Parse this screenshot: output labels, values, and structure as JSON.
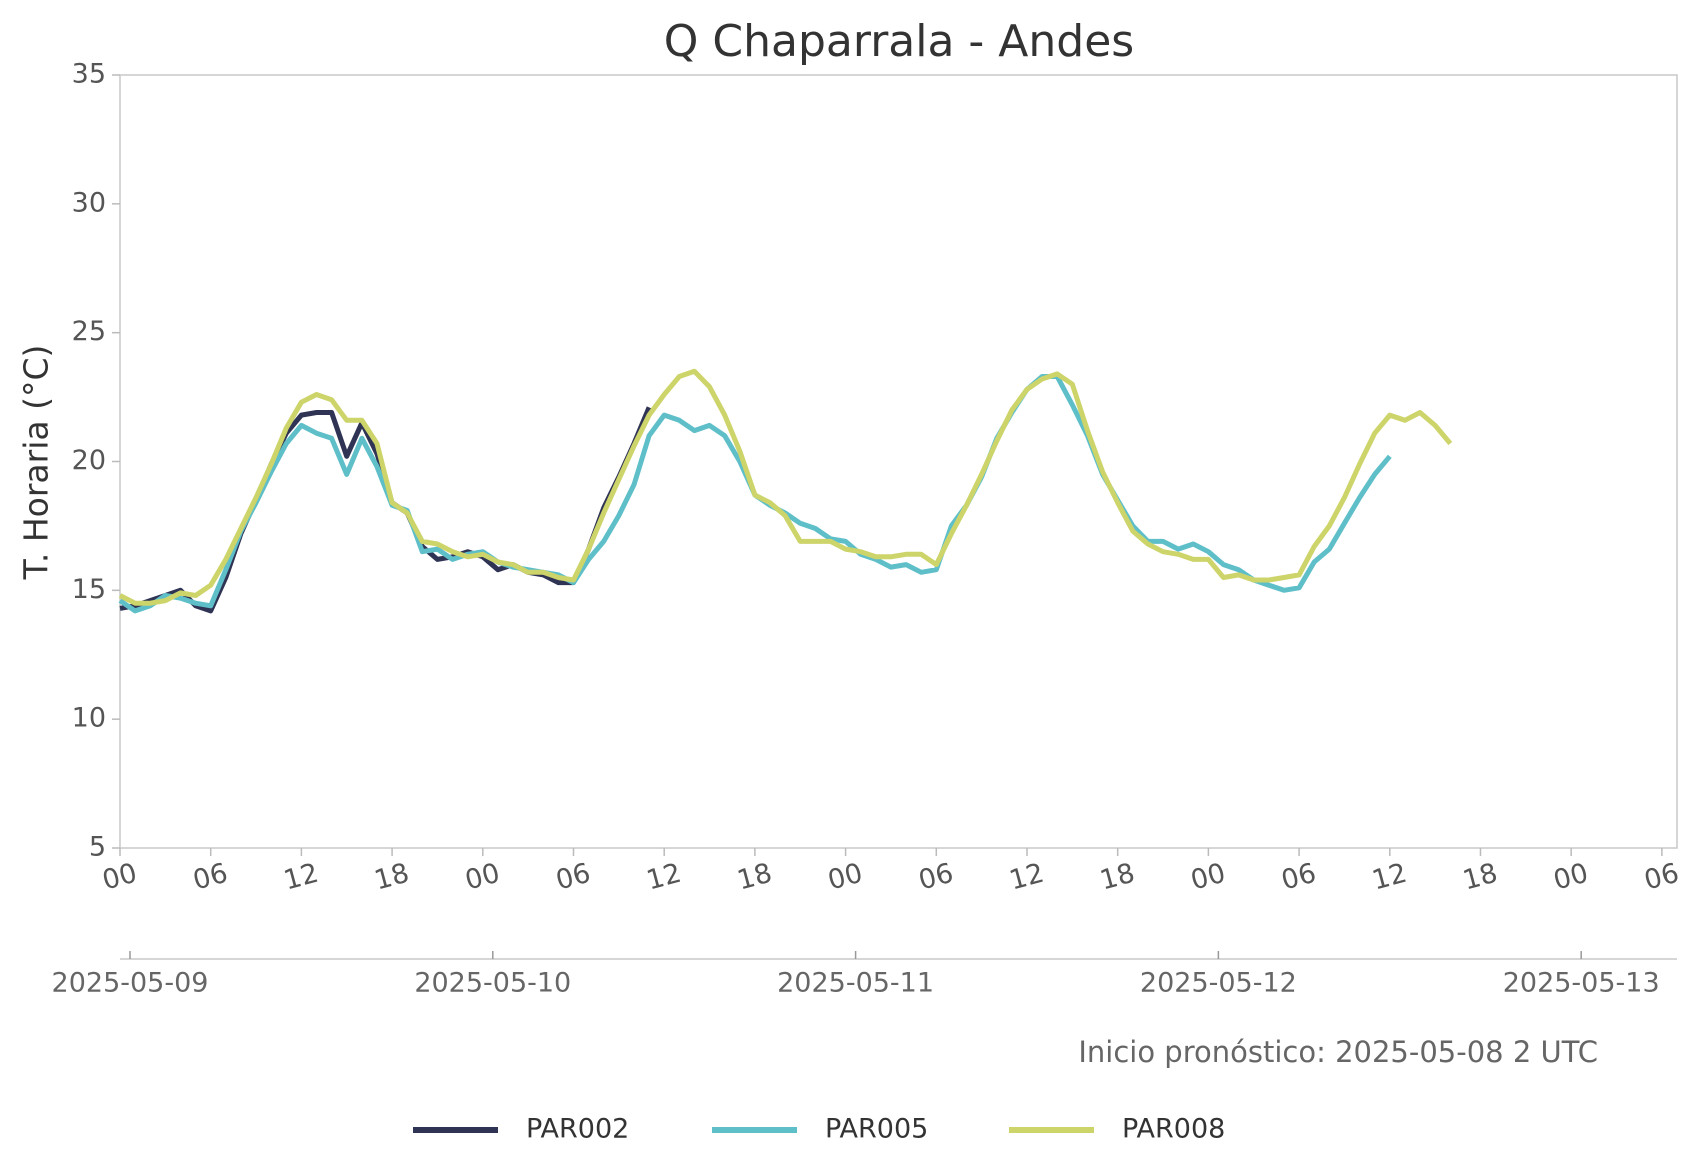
{
  "chart_data": {
    "type": "line",
    "title": "Q Chaparrala - Andes",
    "ylabel": "T. Horaria (°C)",
    "annotation": "Inicio pronóstico: 2025-05-08 2 UTC",
    "x": [
      0,
      1,
      2,
      3,
      4,
      5,
      6,
      7,
      8,
      9,
      10,
      11,
      12,
      13,
      14,
      15,
      16,
      17,
      18,
      19,
      20,
      21,
      22,
      23,
      24,
      25,
      26,
      27,
      28,
      29,
      30,
      31,
      32,
      33,
      34,
      35,
      36,
      37,
      38,
      39,
      40,
      41,
      42,
      43,
      44,
      45,
      46,
      47,
      48,
      49,
      50,
      51,
      52,
      53,
      54,
      55,
      56,
      57,
      58,
      59,
      60,
      61,
      62,
      63,
      64,
      65,
      66,
      67,
      68,
      69,
      70,
      71,
      72,
      73,
      74,
      75,
      76,
      77,
      78,
      79,
      80,
      81,
      82,
      83,
      84,
      85,
      86,
      87,
      88
    ],
    "series": [
      {
        "name": "PAR002",
        "color": "#2f3455",
        "values": [
          14.3,
          14.4,
          14.6,
          14.8,
          15.0,
          14.4,
          14.2,
          15.5,
          17.2,
          18.5,
          19.9,
          21.1,
          21.8,
          21.9,
          21.9,
          20.2,
          21.5,
          20.3,
          18.4,
          18.0,
          16.7,
          16.2,
          16.3,
          16.5,
          16.3,
          15.8,
          16.0,
          15.7,
          15.6,
          15.3,
          15.3,
          16.6,
          18.2,
          19.4,
          20.7,
          22.1,
          null,
          null,
          null,
          null,
          null,
          null,
          null,
          null,
          null,
          null,
          null,
          null,
          null,
          null,
          null,
          null,
          null,
          null,
          null,
          null,
          null,
          null,
          null,
          null,
          null,
          null,
          null,
          null,
          null,
          null,
          null,
          null,
          null,
          null,
          null,
          null,
          null,
          null,
          null,
          null,
          null,
          null,
          null,
          null,
          null,
          null,
          null,
          null,
          null,
          null,
          null,
          null,
          null
        ]
      },
      {
        "name": "PAR005",
        "color": "#5ebfc9",
        "values": [
          14.6,
          14.2,
          14.4,
          14.8,
          14.7,
          14.5,
          14.4,
          15.8,
          17.3,
          18.4,
          19.6,
          20.7,
          21.4,
          21.1,
          20.9,
          19.5,
          20.9,
          19.8,
          18.3,
          18.1,
          16.5,
          16.6,
          16.2,
          16.4,
          16.5,
          16.1,
          15.9,
          15.8,
          15.7,
          15.6,
          15.3,
          16.2,
          16.9,
          17.9,
          19.1,
          21.0,
          21.8,
          21.6,
          21.2,
          21.4,
          21.0,
          20.0,
          18.7,
          18.3,
          18.0,
          17.6,
          17.4,
          17.0,
          16.9,
          16.4,
          16.2,
          15.9,
          16.0,
          15.7,
          15.8,
          17.5,
          18.3,
          19.4,
          20.9,
          21.9,
          22.8,
          23.3,
          23.3,
          22.2,
          21.0,
          19.5,
          18.5,
          17.5,
          16.9,
          16.9,
          16.6,
          16.8,
          16.5,
          16.0,
          15.8,
          15.4,
          15.2,
          15.0,
          15.1,
          16.1,
          16.6,
          17.6,
          18.6,
          19.5,
          20.2,
          null,
          null,
          null,
          null
        ]
      },
      {
        "name": "PAR008",
        "color": "#cdd46a",
        "values": [
          14.8,
          14.5,
          14.5,
          14.6,
          14.9,
          14.8,
          15.2,
          16.2,
          17.4,
          18.6,
          19.9,
          21.3,
          22.3,
          22.6,
          22.4,
          21.6,
          21.6,
          20.7,
          18.4,
          18.0,
          16.9,
          16.8,
          16.5,
          16.3,
          16.4,
          16.1,
          16.0,
          15.7,
          15.7,
          15.5,
          15.4,
          16.6,
          18.0,
          19.3,
          20.6,
          21.8,
          22.6,
          23.3,
          23.5,
          22.9,
          21.8,
          20.4,
          18.7,
          18.4,
          17.9,
          16.9,
          16.9,
          16.9,
          16.6,
          16.5,
          16.3,
          16.3,
          16.4,
          16.4,
          16.0,
          17.2,
          18.3,
          19.5,
          20.8,
          22.0,
          22.8,
          23.2,
          23.4,
          23.0,
          21.2,
          19.6,
          18.4,
          17.3,
          16.8,
          16.5,
          16.4,
          16.2,
          16.2,
          15.5,
          15.6,
          15.4,
          15.4,
          15.5,
          15.6,
          16.7,
          17.5,
          18.6,
          19.9,
          21.1,
          21.8,
          21.6,
          21.9,
          21.4,
          20.7
        ]
      }
    ],
    "xlim": [
      0,
      103
    ],
    "xticks": [
      {
        "value": 0,
        "label": "00"
      },
      {
        "value": 6,
        "label": "06"
      },
      {
        "value": 12,
        "label": "12"
      },
      {
        "value": 18,
        "label": "18"
      },
      {
        "value": 24,
        "label": "00"
      },
      {
        "value": 30,
        "label": "06"
      },
      {
        "value": 36,
        "label": "12"
      },
      {
        "value": 42,
        "label": "18"
      },
      {
        "value": 48,
        "label": "00"
      },
      {
        "value": 54,
        "label": "06"
      },
      {
        "value": 60,
        "label": "12"
      },
      {
        "value": 66,
        "label": "18"
      },
      {
        "value": 72,
        "label": "00"
      },
      {
        "value": 78,
        "label": "06"
      },
      {
        "value": 84,
        "label": "12"
      },
      {
        "value": 90,
        "label": "18"
      },
      {
        "value": 96,
        "label": "00"
      },
      {
        "value": 102,
        "label": "06"
      }
    ],
    "x2ticks": [
      {
        "value": 0,
        "label": "2025-05-09"
      },
      {
        "value": 24,
        "label": "2025-05-10"
      },
      {
        "value": 48,
        "label": "2025-05-11"
      },
      {
        "value": 72,
        "label": "2025-05-12"
      },
      {
        "value": 96,
        "label": "2025-05-13"
      }
    ],
    "ylim": [
      5,
      35
    ],
    "yticks": [
      5,
      10,
      15,
      20,
      25,
      30,
      35
    ],
    "grid": false,
    "legend": "bottom"
  }
}
